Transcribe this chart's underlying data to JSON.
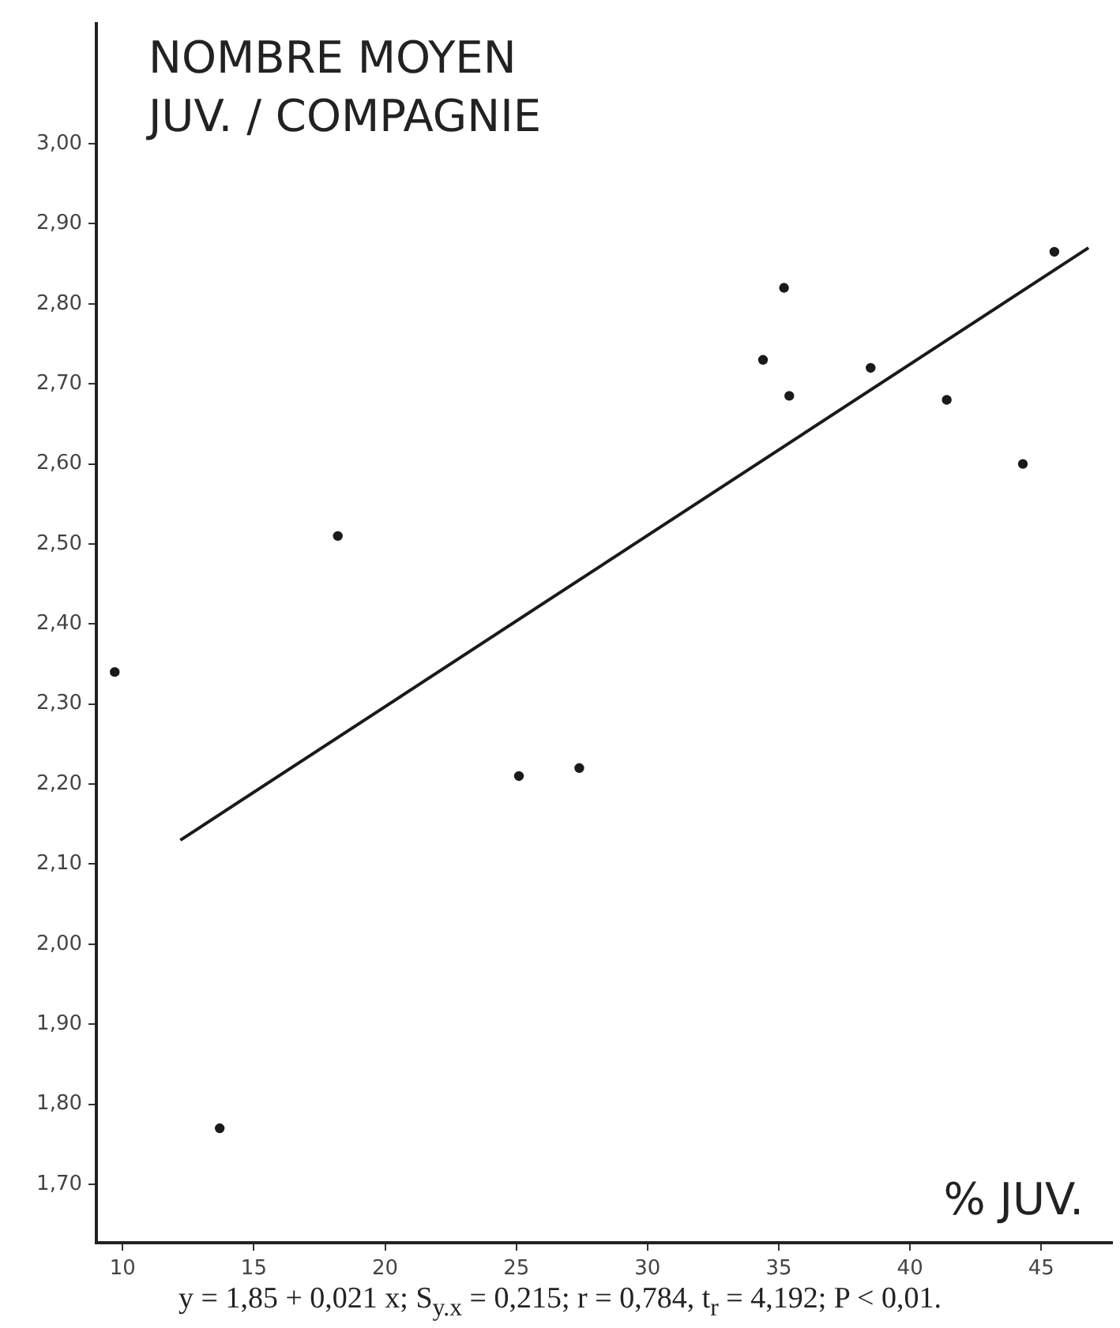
{
  "chart_data": {
    "type": "scatter",
    "ylabel": "NOMBRE MOYEN\nJUV. / COMPAGNIE",
    "xlabel": "% JUV.",
    "annotations": [
      "y = 1,85 + 0,021 x; S$_{y.x}$ = 0,215; r = 0,784, t$_{r}$ = 4,192; P < 0,01."
    ],
    "xlim": [
      9,
      47.7
    ],
    "xticks": [
      10,
      15,
      20,
      25,
      30,
      35,
      40,
      45
    ],
    "ylim": [
      1.627,
      3.15
    ],
    "yticks": [
      {
        "value": 1.7,
        "label": "1,70"
      },
      {
        "value": 1.8,
        "label": "1,80"
      },
      {
        "value": 1.9,
        "label": "1,90"
      },
      {
        "value": 2.0,
        "label": "2,00"
      },
      {
        "value": 2.1,
        "label": "2,10"
      },
      {
        "value": 2.2,
        "label": "2,20"
      },
      {
        "value": 2.3,
        "label": "2,30"
      },
      {
        "value": 2.4,
        "label": "2,40"
      },
      {
        "value": 2.5,
        "label": "2,50"
      },
      {
        "value": 2.6,
        "label": "2,60"
      },
      {
        "value": 2.7,
        "label": "2,70"
      },
      {
        "value": 2.8,
        "label": "2,80"
      },
      {
        "value": 2.9,
        "label": "2,90"
      },
      {
        "value": 3.0,
        "label": "3,00"
      }
    ],
    "grid": false,
    "legend": false,
    "marker": "circle",
    "series": [
      {
        "type": "scatter",
        "color": "#1a1a1a",
        "x": [
          9.7,
          13.7,
          18.2,
          25.1,
          27.4,
          34.4,
          35.2,
          35.4,
          38.5,
          41.4,
          44.3,
          45.5
        ],
        "values": [
          2.34,
          1.77,
          2.51,
          2.21,
          2.22,
          2.73,
          2.82,
          2.685,
          2.72,
          2.68,
          2.6,
          2.865
        ]
      },
      {
        "type": "line",
        "marker": "none",
        "color": "#1a1a1a",
        "x": [
          12.2,
          46.8
        ],
        "values": [
          2.13,
          2.87
        ]
      }
    ]
  }
}
